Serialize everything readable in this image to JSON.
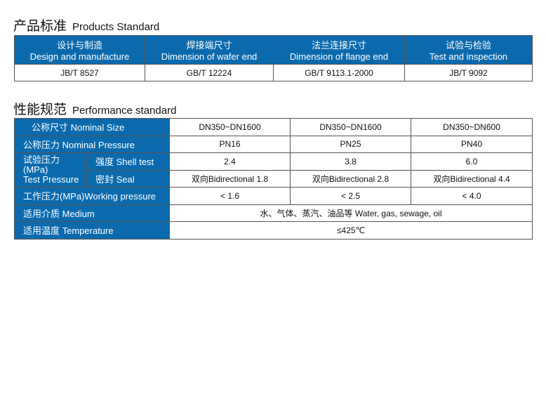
{
  "products": {
    "title_cn": "产品标准",
    "title_en": "Products Standard",
    "headers": [
      {
        "cn": "设计与制造",
        "en": "Design and manufacture"
      },
      {
        "cn": "焊接端尺寸",
        "en": "Dimension of wafer end"
      },
      {
        "cn": "法兰连接尺寸",
        "en": "Dimension of flange end"
      },
      {
        "cn": "试验与检验",
        "en": "Test and inspection"
      }
    ],
    "values": [
      "JB/T 8527",
      "GB/T 12224",
      "GB/T 9113.1-2000",
      "JB/T 9092"
    ]
  },
  "performance": {
    "title_cn": "性能规范",
    "title_en": "Performance standard",
    "nominal_size": {
      "label": "公称尺寸  Nominal Size",
      "values": [
        "DN350~DN1600",
        "DN350~DN1600",
        "DN350~DN600"
      ]
    },
    "nominal_pressure": {
      "label": "公称压力  Nominal Pressure",
      "values": [
        "PN16",
        "PN25",
        "PN40"
      ]
    },
    "test_pressure": {
      "label_cn": "试验压力",
      "label_unit": "(MPa)",
      "label_en": "Test Pressure",
      "shell": {
        "label": "强度 Shell test",
        "values": [
          "2.4",
          "3.8",
          "6.0"
        ]
      },
      "seal": {
        "label": "密封 Seal",
        "values": [
          "双向Bidirectional 1.8",
          "双向Bidirectional 2.8",
          "双向Bidirectional 4.4"
        ]
      }
    },
    "working_pressure": {
      "label": "工作压力(MPa)Working pressure",
      "values": [
        "< 1.6",
        "< 2.5",
        "< 4.0"
      ]
    },
    "medium": {
      "label": "适用介质 Medium",
      "value": "水、气体、蒸汽、油品等  Water, gas, sewage, oil"
    },
    "temperature": {
      "label": "适用温度 Temperature",
      "value": "≤425℃"
    }
  },
  "colors": {
    "header_blue": "#0b6aad"
  }
}
